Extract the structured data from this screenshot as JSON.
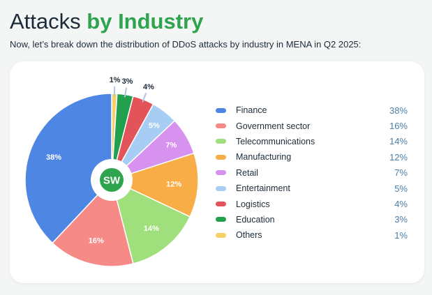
{
  "header": {
    "title_part1": "Attacks",
    "title_part2": "by Industry",
    "subtitle": "Now, let’s break down the distribution of DDoS attacks by industry in MENA in Q2 2025:"
  },
  "brand": {
    "accent": "#2ea44f",
    "logo_text": "SW"
  },
  "chart_data": {
    "type": "pie",
    "title": "",
    "legend_position": "right",
    "slices": [
      {
        "label": "Finance",
        "value": 38,
        "display": "38%",
        "color": "#4e86e4"
      },
      {
        "label": "Government sector",
        "value": 16,
        "display": "16%",
        "color": "#f58a87"
      },
      {
        "label": "Telecommunications",
        "value": 14,
        "display": "14%",
        "color": "#9fdf7c"
      },
      {
        "label": "Manufacturing",
        "value": 12,
        "display": "12%",
        "color": "#f8ad47"
      },
      {
        "label": "Retail",
        "value": 7,
        "display": "7%",
        "color": "#d792ef"
      },
      {
        "label": "Entertainment",
        "value": 5,
        "display": "5%",
        "color": "#a7cdf4"
      },
      {
        "label": "Logistics",
        "value": 4,
        "display": "4%",
        "color": "#e2545a"
      },
      {
        "label": "Education",
        "value": 3,
        "display": "3%",
        "color": "#22a04e"
      },
      {
        "label": "Others",
        "value": 1,
        "display": "1%",
        "color": "#f7d06a"
      }
    ]
  }
}
